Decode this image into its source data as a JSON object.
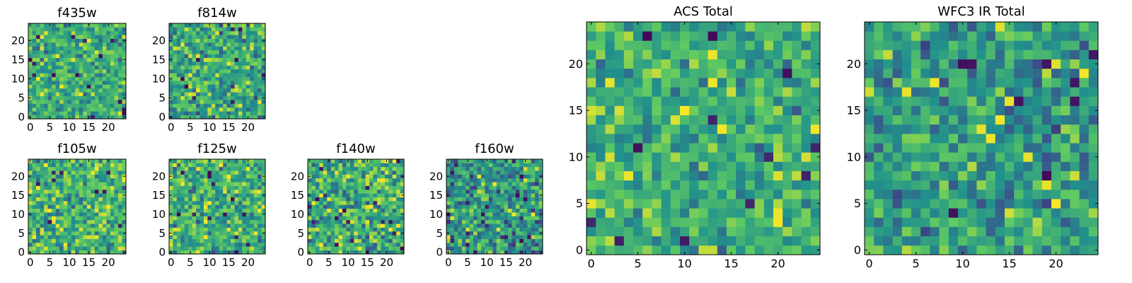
{
  "figure": {
    "background": "#ffffff"
  },
  "colormap": {
    "name": "viridis",
    "stops": [
      "#440154",
      "#3b528b",
      "#21918c",
      "#5ec962",
      "#fde725"
    ]
  },
  "chart_data": [
    {
      "id": "f435w",
      "type": "heatmap",
      "title": "f435w",
      "grid_size": 25,
      "xlim": [
        0,
        24
      ],
      "ylim": [
        0,
        24
      ],
      "xticks": [
        0,
        5,
        10,
        15,
        20
      ],
      "yticks": [
        0,
        5,
        10,
        15,
        20
      ],
      "value_distribution": {
        "mean": 0.62,
        "spread": 0.2,
        "seed": 435
      }
    },
    {
      "id": "f814w",
      "type": "heatmap",
      "title": "f814w",
      "grid_size": 25,
      "xlim": [
        0,
        24
      ],
      "ylim": [
        0,
        24
      ],
      "xticks": [
        0,
        5,
        10,
        15,
        20
      ],
      "yticks": [
        0,
        5,
        10,
        15,
        20
      ],
      "value_distribution": {
        "mean": 0.6,
        "spread": 0.22,
        "seed": 814
      }
    },
    {
      "id": "f105w",
      "type": "heatmap",
      "title": "f105w",
      "grid_size": 25,
      "xlim": [
        0,
        24
      ],
      "ylim": [
        0,
        24
      ],
      "xticks": [
        0,
        5,
        10,
        15,
        20
      ],
      "yticks": [
        0,
        5,
        10,
        15,
        20
      ],
      "value_distribution": {
        "mean": 0.66,
        "spread": 0.22,
        "seed": 105
      }
    },
    {
      "id": "f125w",
      "type": "heatmap",
      "title": "f125w",
      "grid_size": 25,
      "xlim": [
        0,
        24
      ],
      "ylim": [
        0,
        24
      ],
      "xticks": [
        0,
        5,
        10,
        15,
        20
      ],
      "yticks": [
        0,
        5,
        10,
        15,
        20
      ],
      "value_distribution": {
        "mean": 0.64,
        "spread": 0.22,
        "seed": 125
      }
    },
    {
      "id": "f140w",
      "type": "heatmap",
      "title": "f140w",
      "grid_size": 25,
      "xlim": [
        0,
        24
      ],
      "ylim": [
        0,
        24
      ],
      "xticks": [
        0,
        5,
        10,
        15,
        20
      ],
      "yticks": [
        0,
        5,
        10,
        15,
        20
      ],
      "value_distribution": {
        "mean": 0.62,
        "spread": 0.24,
        "seed": 140
      }
    },
    {
      "id": "f160w",
      "type": "heatmap",
      "title": "f160w",
      "grid_size": 25,
      "xlim": [
        0,
        24
      ],
      "ylim": [
        0,
        24
      ],
      "xticks": [
        0,
        5,
        10,
        15,
        20
      ],
      "yticks": [
        0,
        5,
        10,
        15,
        20
      ],
      "value_distribution": {
        "mean": 0.52,
        "spread": 0.24,
        "seed": 160
      }
    },
    {
      "id": "acs-total",
      "type": "heatmap",
      "title": "ACS Total",
      "grid_size": 25,
      "xlim": [
        0,
        24
      ],
      "ylim": [
        0,
        24
      ],
      "xticks": [
        0,
        5,
        10,
        15,
        20
      ],
      "yticks": [
        0,
        5,
        10,
        15,
        20
      ],
      "value_distribution": {
        "mean": 0.62,
        "spread": 0.18,
        "seed": 777
      }
    },
    {
      "id": "wfc3-ir-total",
      "type": "heatmap",
      "title": "WFC3 IR Total",
      "grid_size": 25,
      "xlim": [
        0,
        24
      ],
      "ylim": [
        0,
        24
      ],
      "xticks": [
        0,
        5,
        10,
        15,
        20
      ],
      "yticks": [
        0,
        5,
        10,
        15,
        20
      ],
      "value_distribution": {
        "mean": 0.55,
        "spread": 0.2,
        "seed": 999
      }
    }
  ]
}
